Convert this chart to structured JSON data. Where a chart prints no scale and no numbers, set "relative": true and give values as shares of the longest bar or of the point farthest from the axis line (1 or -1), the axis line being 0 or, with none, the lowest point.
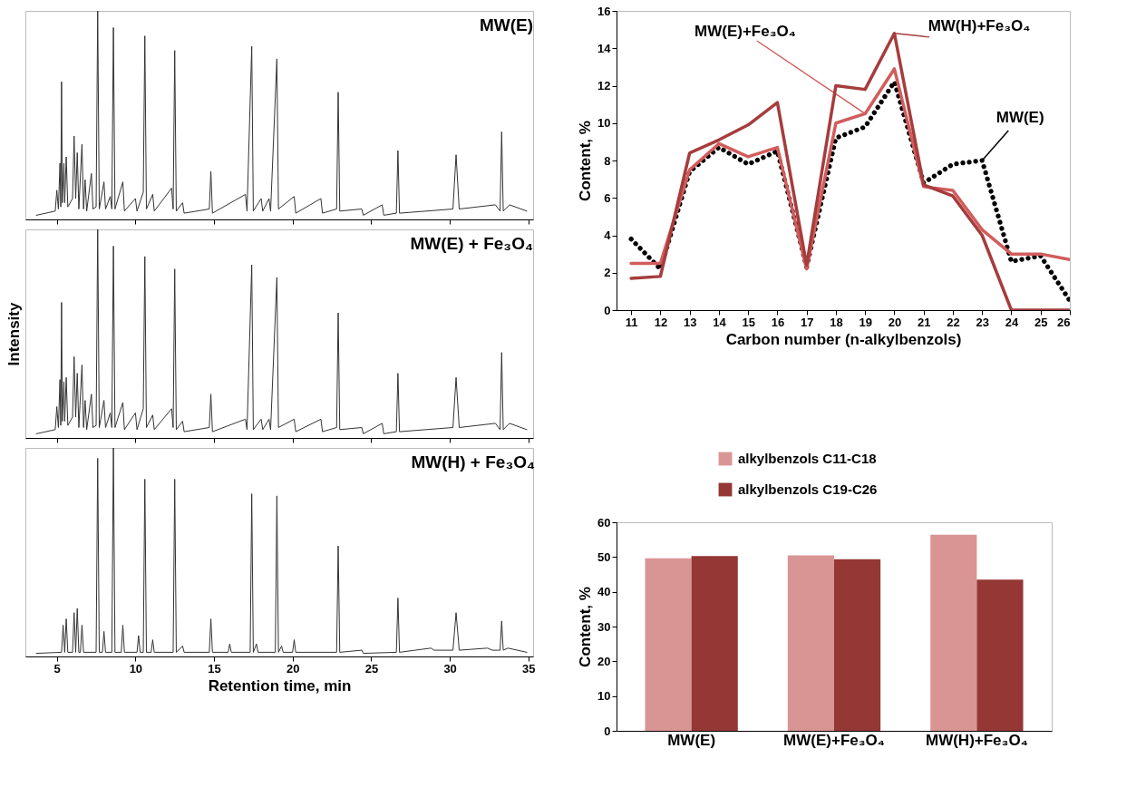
{
  "chart_data": [
    {
      "type": "line",
      "title": "MW(E)",
      "relative": true,
      "xlim": [
        3,
        35.3
      ],
      "xticks": [
        5,
        10,
        15,
        20,
        25,
        30,
        35
      ],
      "tick_labels": false,
      "grid": false,
      "x": [
        3.7,
        4.9,
        5.0,
        5.1,
        5.2,
        5.25,
        5.3,
        5.35,
        5.45,
        5.5,
        5.6,
        5.7,
        6.0,
        6.1,
        6.2,
        6.3,
        6.4,
        6.6,
        6.7,
        6.8,
        6.9,
        7.2,
        7.3,
        7.5,
        7.6,
        7.7,
        8.0,
        8.1,
        8.4,
        8.5,
        8.6,
        8.7,
        9.2,
        9.3,
        10.0,
        10.1,
        10.5,
        10.6,
        10.7,
        11.1,
        11.2,
        12.3,
        12.4,
        12.5,
        12.6,
        13.0,
        13.1,
        14.7,
        14.8,
        14.9,
        17.0,
        17.1,
        17.4,
        17.5,
        18.0,
        18.1,
        18.5,
        18.6,
        19.0,
        19.1,
        20.1,
        20.2,
        21.8,
        21.9,
        22.8,
        22.9,
        23.0,
        24.4,
        24.5,
        25.7,
        25.8,
        26.6,
        26.7,
        26.8,
        30.2,
        30.4,
        30.6,
        32.9,
        33.2,
        33.3,
        33.4,
        33.8,
        34.9
      ],
      "series": [
        {
          "color": "#333333",
          "values": [
            0.02,
            0.04,
            0.14,
            0.05,
            0.27,
            0.06,
            0.66,
            0.08,
            0.27,
            0.08,
            0.3,
            0.06,
            0.1,
            0.4,
            0.1,
            0.32,
            0.05,
            0.36,
            0.05,
            0.19,
            0.04,
            0.22,
            0.05,
            0.06,
            1.0,
            0.05,
            0.18,
            0.05,
            0.11,
            0.05,
            0.92,
            0.05,
            0.18,
            0.04,
            0.1,
            0.04,
            0.13,
            0.88,
            0.05,
            0.12,
            0.04,
            0.15,
            0.05,
            0.81,
            0.04,
            0.08,
            0.03,
            0.05,
            0.23,
            0.03,
            0.12,
            0.04,
            0.83,
            0.04,
            0.1,
            0.04,
            0.1,
            0.04,
            0.77,
            0.05,
            0.11,
            0.03,
            0.1,
            0.03,
            0.05,
            0.61,
            0.04,
            0.05,
            0.02,
            0.07,
            0.02,
            0.03,
            0.33,
            0.03,
            0.05,
            0.31,
            0.05,
            0.07,
            0.04,
            0.42,
            0.04,
            0.07,
            0.04
          ]
        }
      ]
    },
    {
      "type": "line",
      "title": "MW(E) + Fe₃O₄",
      "relative": true,
      "ylabel": "Intensity",
      "xlim": [
        3,
        35.3
      ],
      "xticks": [
        5,
        10,
        15,
        20,
        25,
        30,
        35
      ],
      "tick_labels": false,
      "grid": false,
      "x": [
        3.7,
        4.9,
        5.0,
        5.1,
        5.2,
        5.25,
        5.3,
        5.35,
        5.45,
        5.5,
        5.6,
        5.7,
        6.0,
        6.1,
        6.2,
        6.3,
        6.4,
        6.6,
        6.7,
        6.8,
        6.9,
        7.2,
        7.3,
        7.5,
        7.6,
        7.7,
        8.0,
        8.1,
        8.4,
        8.5,
        8.6,
        8.7,
        9.2,
        9.3,
        10.0,
        10.1,
        10.5,
        10.6,
        10.7,
        11.1,
        11.2,
        12.3,
        12.4,
        12.5,
        12.6,
        13.0,
        13.1,
        14.7,
        14.8,
        14.9,
        17.0,
        17.1,
        17.4,
        17.5,
        18.0,
        18.1,
        18.5,
        18.6,
        19.0,
        19.1,
        20.1,
        20.2,
        21.8,
        21.9,
        22.8,
        22.9,
        23.0,
        24.4,
        24.5,
        25.7,
        25.8,
        26.6,
        26.7,
        26.8,
        30.2,
        30.4,
        30.6,
        32.9,
        33.2,
        33.3,
        33.4,
        33.8,
        34.9
      ],
      "series": [
        {
          "color": "#333333",
          "values": [
            0.02,
            0.04,
            0.15,
            0.05,
            0.28,
            0.06,
            0.65,
            0.08,
            0.27,
            0.08,
            0.29,
            0.06,
            0.1,
            0.39,
            0.1,
            0.31,
            0.05,
            0.35,
            0.05,
            0.18,
            0.04,
            0.21,
            0.05,
            0.06,
            1.0,
            0.05,
            0.18,
            0.05,
            0.12,
            0.05,
            0.92,
            0.05,
            0.17,
            0.04,
            0.12,
            0.04,
            0.14,
            0.87,
            0.05,
            0.11,
            0.04,
            0.14,
            0.05,
            0.81,
            0.04,
            0.08,
            0.03,
            0.05,
            0.21,
            0.03,
            0.09,
            0.04,
            0.83,
            0.04,
            0.09,
            0.04,
            0.09,
            0.04,
            0.77,
            0.05,
            0.09,
            0.03,
            0.09,
            0.03,
            0.05,
            0.6,
            0.04,
            0.05,
            0.02,
            0.07,
            0.02,
            0.03,
            0.31,
            0.03,
            0.05,
            0.29,
            0.05,
            0.07,
            0.04,
            0.41,
            0.04,
            0.07,
            0.04
          ]
        }
      ]
    },
    {
      "type": "line",
      "title": "MW(H) + Fe₃O₄",
      "relative": true,
      "xlabel": "Retention time, min",
      "xlim": [
        3,
        35.3
      ],
      "xticks": [
        5,
        10,
        15,
        20,
        25,
        30,
        35
      ],
      "tick_labels": "x",
      "grid": false,
      "x": [
        3.7,
        5.3,
        5.4,
        5.5,
        5.6,
        5.7,
        6.0,
        6.1,
        6.2,
        6.3,
        6.4,
        6.5,
        6.6,
        6.7,
        7.5,
        7.6,
        7.7,
        7.9,
        8.0,
        8.1,
        8.5,
        8.6,
        8.7,
        9.1,
        9.2,
        9.3,
        10.1,
        10.2,
        10.3,
        10.5,
        10.6,
        10.7,
        11.0,
        11.1,
        11.2,
        12.4,
        12.5,
        12.6,
        13.0,
        13.1,
        14.7,
        14.8,
        14.9,
        15.9,
        16.0,
        16.1,
        17.3,
        17.4,
        17.5,
        17.7,
        17.8,
        18.9,
        19.0,
        19.1,
        19.3,
        19.4,
        20.0,
        20.1,
        20.2,
        22.8,
        22.9,
        23.0,
        24.4,
        24.5,
        26.6,
        26.7,
        26.8,
        28.8,
        29.0,
        30.2,
        30.4,
        30.6,
        32.4,
        32.7,
        33.2,
        33.3,
        33.4,
        33.7,
        34.9
      ],
      "series": [
        {
          "color": "#333333",
          "values": [
            0.015,
            0.02,
            0.15,
            0.02,
            0.18,
            0.02,
            0.02,
            0.21,
            0.02,
            0.23,
            0.02,
            0.02,
            0.15,
            0.02,
            0.02,
            0.95,
            0.02,
            0.02,
            0.12,
            0.02,
            0.02,
            1.0,
            0.02,
            0.02,
            0.15,
            0.02,
            0.02,
            0.1,
            0.02,
            0.02,
            0.85,
            0.02,
            0.02,
            0.08,
            0.02,
            0.02,
            0.85,
            0.02,
            0.05,
            0.02,
            0.02,
            0.18,
            0.02,
            0.02,
            0.06,
            0.02,
            0.02,
            0.78,
            0.02,
            0.06,
            0.02,
            0.02,
            0.77,
            0.02,
            0.05,
            0.02,
            0.02,
            0.08,
            0.02,
            0.02,
            0.53,
            0.02,
            0.03,
            0.015,
            0.02,
            0.28,
            0.02,
            0.04,
            0.03,
            0.03,
            0.21,
            0.03,
            0.04,
            0.03,
            0.03,
            0.17,
            0.03,
            0.04,
            0.02
          ]
        }
      ]
    },
    {
      "type": "line",
      "xlabel": "Carbon number (n-alkylbenzols)",
      "ylabel": "Content, %",
      "x": [
        11,
        12,
        13,
        14,
        15,
        16,
        17,
        18,
        19,
        20,
        21,
        22,
        23,
        24,
        25,
        26
      ],
      "xlim": [
        10.5,
        26
      ],
      "xticks": [
        11,
        12,
        13,
        14,
        15,
        16,
        17,
        18,
        19,
        20,
        21,
        22,
        23,
        24,
        25,
        26
      ],
      "ylim": [
        0,
        16
      ],
      "yticks": [
        0,
        2,
        4,
        6,
        8,
        10,
        12,
        14,
        16
      ],
      "grid": false,
      "marker": "none",
      "series": [
        {
          "name": "MW(E)",
          "color": "#000000",
          "line_style": "dotted",
          "values": [
            3.8,
            2.2,
            7.4,
            8.7,
            7.8,
            8.5,
            2.3,
            9.2,
            9.8,
            12.2,
            6.8,
            7.8,
            8.0,
            2.6,
            2.9,
            0.5
          ]
        },
        {
          "name": "MW(E)+Fe₃O₄",
          "color": "#d25c5c",
          "line_style": "solid",
          "values": [
            2.5,
            2.5,
            7.5,
            8.9,
            8.2,
            8.7,
            2.2,
            10.0,
            10.5,
            12.9,
            6.6,
            6.4,
            4.3,
            3.0,
            3.0,
            2.7
          ]
        },
        {
          "name": "MW(H)+Fe₃O₄",
          "color": "#a63c3c",
          "line_style": "solid",
          "values": [
            1.7,
            1.8,
            8.4,
            9.1,
            9.9,
            11.1,
            2.4,
            12.0,
            11.8,
            14.8,
            6.7,
            6.1,
            4.0,
            0,
            0,
            0
          ]
        }
      ]
    },
    {
      "type": "bar",
      "ylabel": "Content, %",
      "categories": [
        "MW(E)",
        "MW(E)+Fe₃O₄",
        "MW(H)+Fe₃O₄"
      ],
      "ylim": [
        0,
        60
      ],
      "yticks": [
        0,
        10,
        20,
        30,
        40,
        50,
        60
      ],
      "grid": false,
      "legend": "top",
      "series": [
        {
          "name": "alkylbenzols C11-C18",
          "color": "#d99594",
          "values": [
            49.6,
            50.5,
            56.4
          ]
        },
        {
          "name": "alkylbenzols C19-C26",
          "color": "#953735",
          "values": [
            50.3,
            49.4,
            43.5
          ]
        }
      ]
    }
  ]
}
